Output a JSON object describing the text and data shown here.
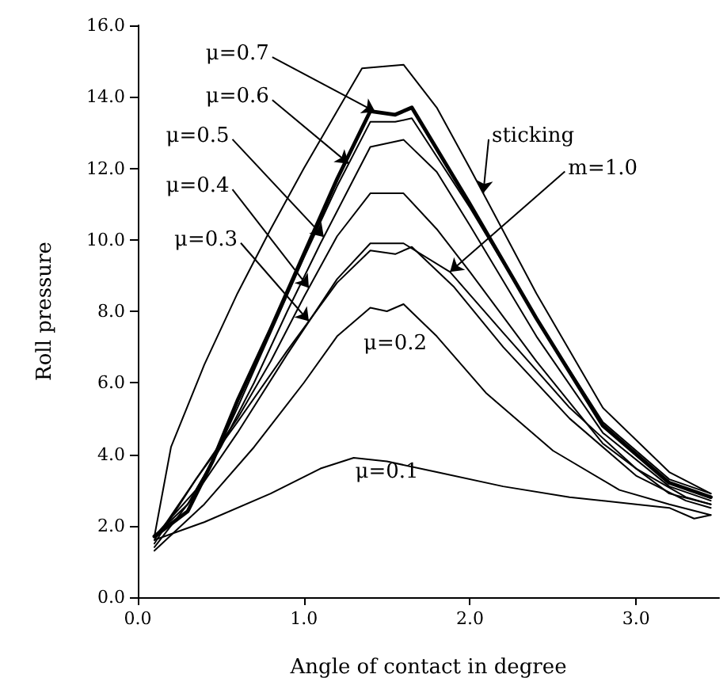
{
  "chart_data": {
    "type": "line",
    "xlabel": "Angle of contact in degree",
    "ylabel": "Roll pressure",
    "xlim": [
      0,
      3.5
    ],
    "ylim": [
      0,
      16
    ],
    "xticks": [
      {
        "value": 0,
        "label": "0.0"
      },
      {
        "value": 1,
        "label": "1.0"
      },
      {
        "value": 2,
        "label": "2.0"
      },
      {
        "value": 3,
        "label": "3.0"
      }
    ],
    "yticks": [
      {
        "value": 0,
        "label": "0.0"
      },
      {
        "value": 2,
        "label": "2.0"
      },
      {
        "value": 4,
        "label": "4.0"
      },
      {
        "value": 6,
        "label": "6.0"
      },
      {
        "value": 8,
        "label": "8.0"
      },
      {
        "value": 10,
        "label": "10.0"
      },
      {
        "value": 12,
        "label": "12.0"
      },
      {
        "value": 14,
        "label": "14.0"
      },
      {
        "value": 16,
        "label": "16.0"
      }
    ],
    "grid": false,
    "legend": false,
    "marker": "none",
    "line_style": "solid",
    "series": [
      {
        "name": "sticking",
        "color": "#000000",
        "x": [
          0.1,
          0.2,
          0.4,
          0.6,
          0.8,
          1.0,
          1.2,
          1.35,
          1.6,
          1.8,
          2.0,
          2.4,
          2.8,
          3.2,
          3.45
        ],
        "values": [
          1.7,
          4.2,
          6.5,
          8.5,
          10.3,
          12.0,
          13.6,
          14.8,
          14.9,
          13.7,
          12.0,
          8.5,
          5.3,
          3.5,
          2.9
        ]
      },
      {
        "name": "μ=0.7",
        "color": "#000000",
        "x": [
          0.1,
          0.3,
          0.45,
          0.6,
          0.8,
          1.0,
          1.2,
          1.4,
          1.55,
          1.65,
          2.0,
          2.4,
          2.8,
          3.2,
          3.45
        ],
        "values": [
          1.7,
          2.4,
          3.8,
          5.5,
          7.5,
          9.6,
          11.7,
          13.6,
          13.5,
          13.7,
          11.0,
          7.8,
          4.8,
          3.2,
          2.8
        ]
      },
      {
        "name": "μ=0.6",
        "color": "#000000",
        "x": [
          0.1,
          0.3,
          0.45,
          0.6,
          0.8,
          1.0,
          1.2,
          1.4,
          1.55,
          1.65,
          2.0,
          2.4,
          2.8,
          3.2,
          3.45
        ],
        "values": [
          1.7,
          2.6,
          3.8,
          5.3,
          7.4,
          9.5,
          11.5,
          13.3,
          13.3,
          13.4,
          10.9,
          7.8,
          4.9,
          3.3,
          2.9
        ]
      },
      {
        "name": "μ=0.5",
        "color": "#000000",
        "x": [
          0.1,
          0.35,
          0.5,
          0.7,
          0.9,
          1.1,
          1.3,
          1.4,
          1.6,
          1.8,
          2.0,
          2.4,
          2.8,
          3.2,
          3.45
        ],
        "values": [
          1.7,
          3.0,
          4.2,
          6.0,
          8.0,
          9.9,
          11.7,
          12.6,
          12.8,
          11.9,
          10.4,
          7.3,
          4.6,
          3.1,
          2.7
        ]
      },
      {
        "name": "μ=0.4",
        "color": "#000000",
        "x": [
          0.1,
          0.35,
          0.6,
          0.8,
          1.0,
          1.2,
          1.4,
          1.6,
          1.8,
          2.0,
          2.4,
          2.8,
          3.2,
          3.45
        ],
        "values": [
          1.6,
          3.3,
          5.0,
          6.6,
          8.4,
          10.1,
          11.3,
          11.3,
          10.3,
          9.1,
          6.6,
          4.3,
          2.9,
          2.6
        ]
      },
      {
        "name": "μ=0.3",
        "color": "#000000",
        "x": [
          0.1,
          0.35,
          0.6,
          0.9,
          1.2,
          1.4,
          1.55,
          1.65,
          1.9,
          2.2,
          2.6,
          3.0,
          3.3,
          3.45
        ],
        "values": [
          1.5,
          3.3,
          4.9,
          6.9,
          8.8,
          9.7,
          9.6,
          9.8,
          8.7,
          7.0,
          5.0,
          3.4,
          2.7,
          2.5
        ]
      },
      {
        "name": "m=1.0",
        "color": "#000000",
        "x": [
          0.1,
          0.35,
          0.6,
          0.9,
          1.2,
          1.4,
          1.6,
          1.88,
          2.2,
          2.6,
          3.0,
          3.3,
          3.45
        ],
        "values": [
          1.4,
          2.9,
          4.6,
          6.8,
          8.9,
          9.9,
          9.9,
          9.1,
          7.4,
          5.3,
          3.6,
          2.8,
          2.6
        ]
      },
      {
        "name": "μ=0.2",
        "color": "#000000",
        "x": [
          0.1,
          0.4,
          0.7,
          1.0,
          1.2,
          1.4,
          1.5,
          1.6,
          1.8,
          2.1,
          2.5,
          2.9,
          3.2,
          3.45
        ],
        "values": [
          1.3,
          2.6,
          4.2,
          6.0,
          7.3,
          8.1,
          8.0,
          8.2,
          7.3,
          5.7,
          4.1,
          3.0,
          2.6,
          2.3
        ]
      },
      {
        "name": "μ=0.1",
        "color": "#000000",
        "x": [
          0.1,
          0.4,
          0.8,
          1.1,
          1.3,
          1.5,
          1.8,
          2.2,
          2.6,
          3.0,
          3.2,
          3.35,
          3.45
        ],
        "values": [
          1.6,
          2.1,
          2.9,
          3.6,
          3.9,
          3.8,
          3.5,
          3.1,
          2.8,
          2.6,
          2.5,
          2.2,
          2.3
        ]
      }
    ]
  }
}
